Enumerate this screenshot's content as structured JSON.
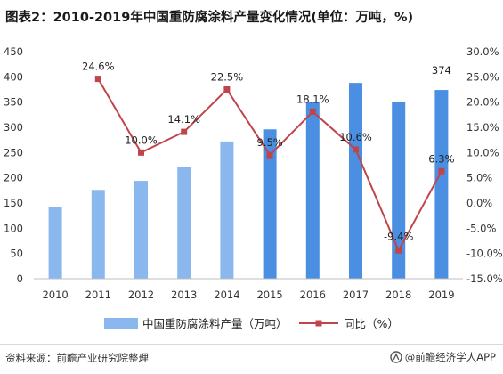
{
  "title": "图表2：2010-2019年中国重防腐涂料产量变化情况(单位：万吨，%)",
  "chart_data": {
    "type": "bar+line",
    "categories": [
      "2010",
      "2011",
      "2012",
      "2013",
      "2014",
      "2015",
      "2016",
      "2017",
      "2018",
      "2019"
    ],
    "series": [
      {
        "name": "中国重防腐涂料产量（万吨）",
        "type": "bar",
        "axis": "left",
        "values": [
          142,
          176,
          194,
          222,
          272,
          296,
          350,
          388,
          351,
          374
        ],
        "data_labels": [
          "",
          "",
          "",
          "",
          "",
          "",
          "",
          "",
          "",
          "374"
        ]
      },
      {
        "name": "同比（%）",
        "type": "line",
        "axis": "right",
        "values": [
          null,
          24.6,
          10.0,
          14.1,
          22.5,
          9.5,
          18.1,
          10.6,
          -9.4,
          6.3
        ],
        "data_labels": [
          "",
          "24.6%",
          "10.0%",
          "14.1%",
          "22.5%",
          "9.5%",
          "18.1%",
          "10.6%",
          "-9.4%",
          "6.3%"
        ]
      }
    ],
    "y_left": {
      "min": 0,
      "max": 450,
      "ticks": [
        "0",
        "50",
        "100",
        "150",
        "200",
        "250",
        "300",
        "350",
        "400",
        "450"
      ]
    },
    "y_right": {
      "min": -15,
      "max": 30,
      "ticks": [
        "-15.0%",
        "-10.0%",
        "-5.0%",
        "0.0%",
        "5.0%",
        "10.0%",
        "15.0%",
        "20.0%",
        "25.0%",
        "30.0%"
      ]
    },
    "grid": false,
    "legend_position": "bottom",
    "colors": {
      "bar_light": "#8ab8ee",
      "bar_dark": "#4a8fe2",
      "line": "#c0454a",
      "marker": "#c0454a"
    }
  },
  "footer": {
    "source": "资料来源：前瞻产业研究院整理",
    "brand": "@前瞻经济学人APP"
  }
}
